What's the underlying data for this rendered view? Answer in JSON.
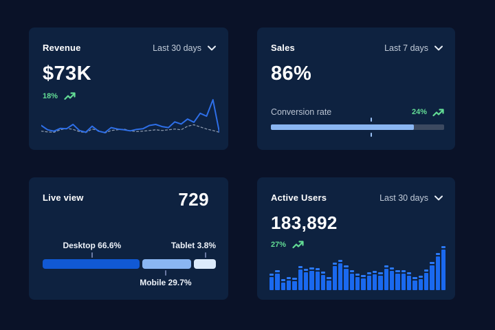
{
  "colors": {
    "page_bg": "#0a1228",
    "card_bg": "#0e2240",
    "line_blue": "#2e6fe8",
    "line_dashed_gray": "#93a0b4",
    "bar_blue": "#1a69ef",
    "strong_blue": "#1159d4",
    "light_blue": "#8ab6f2",
    "pale_blue": "#dceafb",
    "track_gray": "#3c4960",
    "positive_green": "#63dd95",
    "text_primary": "#ffffff",
    "text_secondary": "#c3cdda"
  },
  "cards": {
    "revenue": {
      "title": "Revenue",
      "range_label": "Last 30 days",
      "value": "$73K",
      "delta": "18%"
    },
    "sales": {
      "title": "Sales",
      "range_label": "Last 7 days",
      "value": "86%",
      "metric_label": "Conversion rate",
      "delta": "24%"
    },
    "live_view": {
      "title": "Live view",
      "value": "729",
      "labels": {
        "desktop": "Desktop 66.6%",
        "mobile": "Mobile 29.7%",
        "tablet": "Tablet 3.8%"
      }
    },
    "active_users": {
      "title": "Active Users",
      "range_label": "Last 30 days",
      "value": "183,892",
      "delta": "27%"
    }
  },
  "chart_data": [
    {
      "id": "revenue-trend",
      "type": "line",
      "title": "Revenue last 30 days sparkline",
      "xlabel": "",
      "ylabel": "",
      "ylim": [
        0,
        100
      ],
      "grid": false,
      "legend": "none",
      "series": [
        {
          "name": "current",
          "style": "solid",
          "color": "#2e6fe8",
          "values": [
            24,
            12,
            8,
            16,
            15,
            27,
            10,
            5,
            22,
            8,
            4,
            18,
            14,
            12,
            9,
            13,
            15,
            24,
            27,
            21,
            18,
            34,
            28,
            42,
            33,
            58,
            50,
            96,
            6
          ]
        },
        {
          "name": "previous",
          "style": "dashed",
          "color": "#93a0b4",
          "values": [
            8,
            6,
            5,
            12,
            16,
            13,
            7,
            4,
            14,
            10,
            3,
            10,
            12,
            14,
            9,
            7,
            8,
            10,
            12,
            10,
            12,
            14,
            12,
            22,
            26,
            20,
            14,
            10,
            5
          ]
        }
      ]
    },
    {
      "id": "sales-conversion",
      "type": "bar",
      "title": "Conversion rate progress bar",
      "value_label": "24%",
      "fill_pct": 82.5,
      "marker_pct": 58
    },
    {
      "id": "live-view-devices",
      "type": "bar",
      "stacked": true,
      "title": "Live view device split",
      "segments": [
        {
          "name": "Desktop",
          "pct": 66.6,
          "display_width_pct": 56.5,
          "anchor_pct": 28.5,
          "color": "#1159d4",
          "label_side": "top"
        },
        {
          "name": "Mobile",
          "pct": 29.7,
          "display_width_pct": 28.7,
          "anchor_pct": 71,
          "color": "#8ab6f2",
          "label_side": "bottom"
        },
        {
          "name": "Tablet",
          "pct": 3.8,
          "display_width_pct": 12.8,
          "anchor_pct": 94,
          "color": "#dceafb",
          "label_side": "top"
        }
      ]
    },
    {
      "id": "active-users-bars",
      "type": "bar",
      "title": "Active users last 30 days",
      "ylim": [
        0,
        100
      ],
      "values": [
        38,
        45,
        25,
        30,
        28,
        55,
        48,
        51,
        50,
        42,
        30,
        62,
        68,
        57,
        46,
        38,
        35,
        40,
        44,
        40,
        57,
        51,
        46,
        45,
        40,
        30,
        33,
        47,
        64,
        84,
        100
      ]
    }
  ]
}
